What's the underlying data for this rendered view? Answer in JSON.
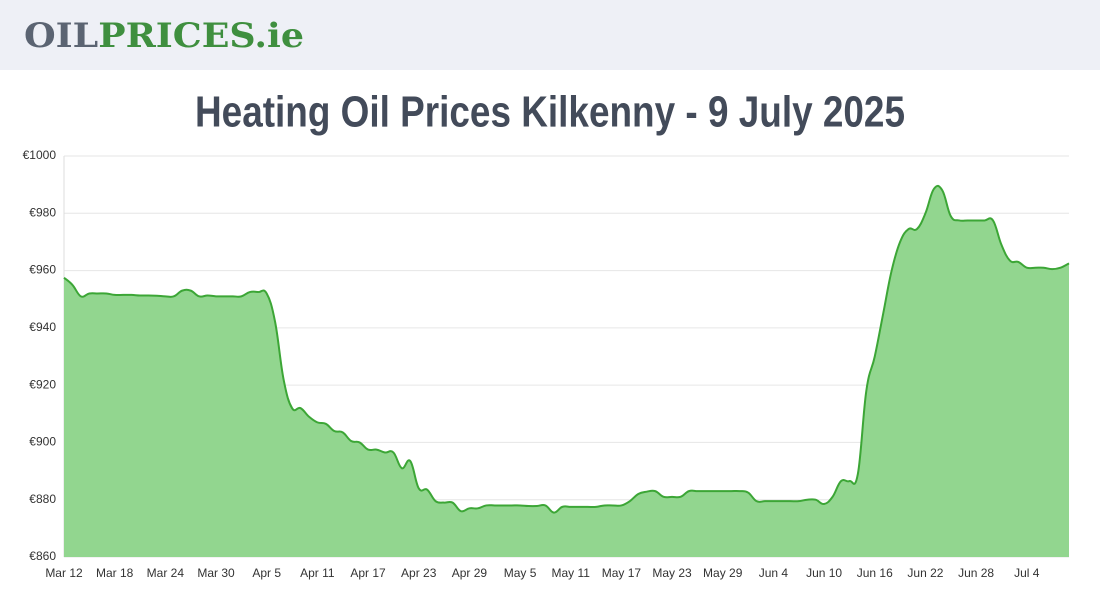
{
  "header": {
    "logo": [
      "OIL",
      "PRICES.ie"
    ]
  },
  "chart_data": {
    "type": "area",
    "title": "Heating Oil Prices Kilkenny - 9 July 2025",
    "categories": [
      "Mar 12",
      null,
      null,
      null,
      null,
      null,
      "Mar 18",
      null,
      null,
      null,
      null,
      null,
      "Mar 24",
      null,
      null,
      null,
      null,
      null,
      "Mar 30",
      null,
      null,
      null,
      null,
      null,
      "Apr 5",
      null,
      null,
      null,
      null,
      null,
      "Apr 11",
      null,
      null,
      null,
      null,
      null,
      "Apr 17",
      null,
      null,
      null,
      null,
      null,
      "Apr 23",
      null,
      null,
      null,
      null,
      null,
      "Apr 29",
      null,
      null,
      null,
      null,
      null,
      "May 5",
      null,
      null,
      null,
      null,
      null,
      "May 11",
      null,
      null,
      null,
      null,
      null,
      "May 17",
      null,
      null,
      null,
      null,
      null,
      "May 23",
      null,
      null,
      null,
      null,
      null,
      "May 29",
      null,
      null,
      null,
      null,
      null,
      "Jun 4",
      null,
      null,
      null,
      null,
      null,
      "Jun 10",
      null,
      null,
      null,
      null,
      null,
      "Jun 16",
      null,
      null,
      null,
      null,
      null,
      "Jun 22",
      null,
      null,
      null,
      null,
      null,
      "Jun 28",
      null,
      null,
      null,
      null,
      null,
      "Jul 4",
      null,
      null,
      null,
      null,
      null
    ],
    "values": [
      957.5,
      955,
      951,
      952,
      952,
      952,
      951.5,
      951.5,
      951.5,
      951.3,
      951.3,
      951.2,
      951,
      951,
      953,
      953,
      951,
      951.3,
      951,
      951,
      951,
      951,
      952.5,
      952.5,
      952,
      942,
      922,
      912,
      912,
      909,
      907,
      906.5,
      904,
      903.5,
      900.5,
      900,
      897.5,
      897.5,
      896.5,
      896.5,
      891,
      893.5,
      884,
      883.5,
      879.5,
      879,
      879,
      876,
      877,
      877,
      878,
      878,
      878,
      878,
      878,
      877.8,
      877.8,
      878,
      875.5,
      877.5,
      877.5,
      877.5,
      877.5,
      877.5,
      878,
      878,
      878,
      879.5,
      882,
      882.8,
      883,
      881,
      881,
      881,
      883,
      883,
      883,
      883,
      883,
      883,
      883,
      882.5,
      879.5,
      879.5,
      879.5,
      879.5,
      879.5,
      879.5,
      880,
      880,
      878.5,
      881,
      886.5,
      886.5,
      889,
      918,
      930,
      945,
      960,
      970,
      974.5,
      974.5,
      980,
      988.5,
      988,
      979,
      977.5,
      977.5,
      977.5,
      977.5,
      977.5,
      969,
      963.5,
      963,
      961,
      961,
      961,
      960.5,
      961,
      962.5
    ],
    "color": "#92d68f",
    "line_color": "#3ca636",
    "ylim": [
      860,
      1000
    ],
    "yticks": [
      {
        "value": 860,
        "label": "€860"
      },
      {
        "value": 880,
        "label": "€880"
      },
      {
        "value": 900,
        "label": "€900"
      },
      {
        "value": 920,
        "label": "€920"
      },
      {
        "value": 940,
        "label": "€940"
      },
      {
        "value": 960,
        "label": "€960"
      },
      {
        "value": 980,
        "label": "€980"
      },
      {
        "value": 1000,
        "label": "€1000"
      }
    ],
    "grid": true
  }
}
